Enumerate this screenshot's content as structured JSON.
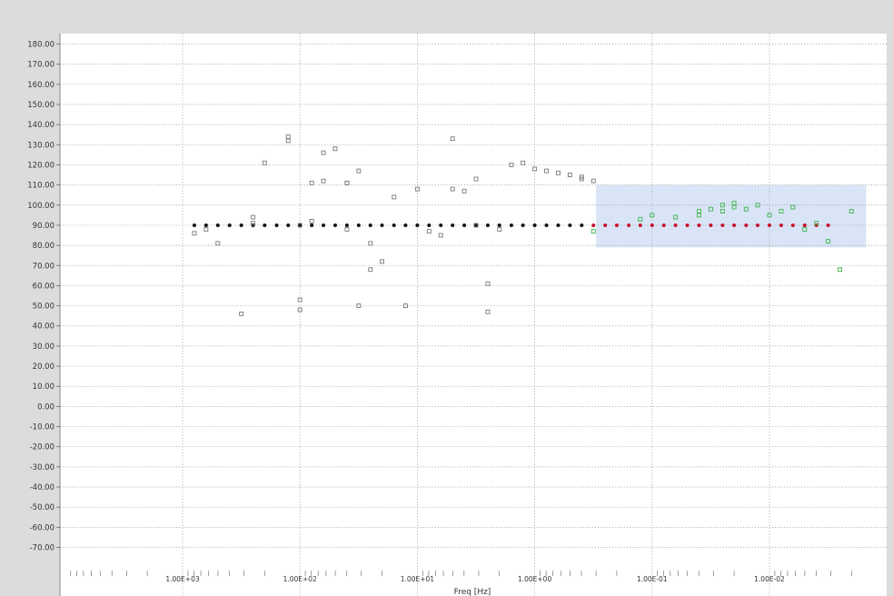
{
  "chart_data": {
    "type": "scatter",
    "title": "",
    "xlabel": "Freq [Hz]",
    "ylabel": "",
    "x_scale": "log",
    "x_direction": "descending",
    "xlim": [
      10000,
      0.0015
    ],
    "ylim": [
      -75,
      185
    ],
    "grid": true,
    "legend": "none",
    "y_ticks": [
      180,
      170,
      160,
      150,
      140,
      130,
      120,
      110,
      100,
      90,
      80,
      70,
      60,
      50,
      40,
      30,
      20,
      10,
      0,
      -10,
      -20,
      -30,
      -40,
      -50,
      -60,
      -70
    ],
    "y_tick_labels": [
      "180.00",
      "170.00",
      "160.00",
      "150.00",
      "140.00",
      "130.00",
      "120.00",
      "110.00",
      "100.00",
      "90.00",
      "80.00",
      "70.00",
      "60.00",
      "50.00",
      "40.00",
      "30.00",
      "20.00",
      "10.00",
      "0.00",
      "-10.00",
      "-20.00",
      "-30.00",
      "-40.00",
      "-50.00",
      "-60.00",
      "-70.00"
    ],
    "x_ticks": [
      1000,
      100,
      10,
      1,
      0.1,
      0.01
    ],
    "x_tick_labels": [
      "1.00E+03",
      "1.00E+02",
      "1.00E+01",
      "1.00E+00",
      "1.00E-01",
      "1.00E-02"
    ],
    "highlight_region": {
      "x": [
        0.3,
        0.0015
      ],
      "y": [
        79,
        110
      ],
      "color": "#c9daf3"
    },
    "series": [
      {
        "color": "#111111",
        "marker": "dot",
        "x": [
          794,
          631,
          501,
          398,
          316,
          251,
          200,
          158,
          126,
          100,
          79.4,
          63.1,
          50.1,
          39.8,
          31.6,
          25.1,
          20,
          15.8,
          12.6,
          10,
          7.94,
          6.31,
          5.01,
          3.98,
          3.16,
          2.51,
          2,
          1.58,
          1.26,
          1,
          0.794,
          0.631,
          0.501,
          0.398
        ],
        "y": [
          90,
          90,
          90,
          90,
          90,
          90,
          90,
          90,
          90,
          90,
          90,
          90,
          90,
          90,
          90,
          90,
          90,
          90,
          90,
          90,
          90,
          90,
          90,
          90,
          90,
          90,
          90,
          90,
          90,
          90,
          90,
          90,
          90,
          90
        ]
      },
      {
        "color": "#c8102e",
        "marker": "dot",
        "x": [
          0.316,
          0.251,
          0.2,
          0.158,
          0.126,
          0.1,
          0.0794,
          0.0631,
          0.0501,
          0.0398,
          0.0316,
          0.0251,
          0.02,
          0.0158,
          0.0126,
          0.01,
          0.00794,
          0.00631,
          0.00501,
          0.00398,
          0.00316
        ],
        "y": [
          90,
          90,
          90,
          90,
          90,
          90,
          90,
          90,
          90,
          90,
          90,
          90,
          90,
          90,
          90,
          90,
          90,
          90,
          90,
          90,
          90
        ]
      },
      {
        "color": "#7a7a7a",
        "marker": "square",
        "x": [
          794,
          631,
          501,
          316,
          251,
          251,
          200,
          126,
          126,
          100,
          100,
          100,
          79.4,
          79.4,
          63.1,
          63.1,
          50.1,
          39.8,
          39.8,
          39.8,
          31.6,
          31.6,
          25.1,
          25.1,
          20,
          15.8,
          12.6,
          10,
          7.94,
          6.31,
          5.01,
          5.01,
          3.98,
          3.16,
          3.16,
          2.51,
          2.51,
          2,
          1.26,
          1.58,
          1,
          0.794,
          0.631,
          0.501,
          0.398,
          0.398,
          0.316
        ],
        "y": [
          86,
          88,
          81,
          46,
          94,
          91,
          121,
          134,
          132,
          53,
          48,
          90,
          111,
          92,
          126,
          112,
          128,
          111,
          88,
          111,
          117,
          50,
          68,
          81,
          72,
          104,
          50,
          108,
          87,
          85,
          108,
          133,
          107,
          113,
          90,
          61,
          47,
          88,
          121,
          120,
          118,
          117,
          116,
          115,
          114,
          113,
          112
        ]
      },
      {
        "color": "#3cb44b",
        "marker": "square",
        "x": [
          0.316,
          0.126,
          0.1,
          0.0631,
          0.0398,
          0.0398,
          0.0316,
          0.0251,
          0.0251,
          0.02,
          0.02,
          0.0158,
          0.0126,
          0.01,
          0.00794,
          0.00631,
          0.00501,
          0.00398,
          0.00316,
          0.00251,
          0.002
        ],
        "y": [
          87,
          93,
          95,
          94,
          95,
          97,
          98,
          100,
          97,
          101,
          99,
          98,
          100,
          95,
          97,
          99,
          88,
          91,
          82,
          68,
          97
        ]
      }
    ]
  }
}
